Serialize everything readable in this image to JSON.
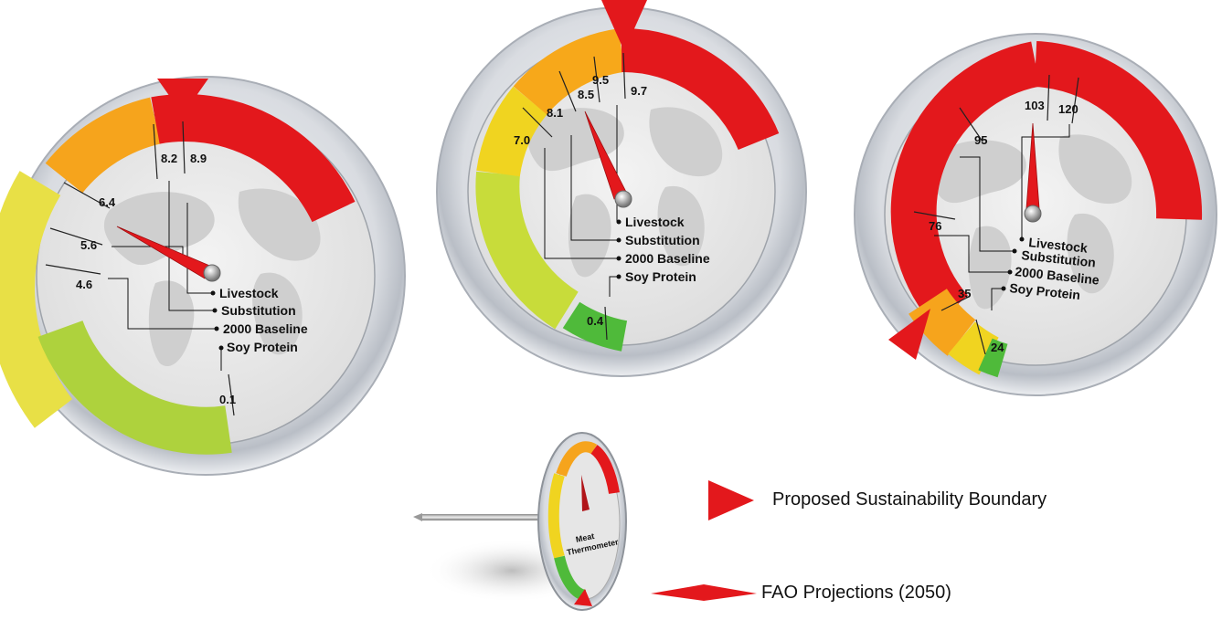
{
  "legend": {
    "boundary_label": "Proposed Sustainability Boundary",
    "fao_label": "FAO Projections (2050)"
  },
  "thermometer": {
    "line1": "Meat",
    "line2": "Thermometer"
  },
  "colors": {
    "red": "#e3181c",
    "orange": "#f59a16",
    "yellow": "#f2e21a",
    "green": "#4fba3a",
    "dial_face": "#e8e8e8",
    "map": "#cfcfcf",
    "bezel": "#c9cdd4"
  },
  "gauges": [
    {
      "scale_labels": [
        "0.1",
        "4.6",
        "5.6",
        "6.4",
        "8.2",
        "8.9"
      ],
      "categories": [
        "Livestock",
        "Substitution",
        "2000 Baseline",
        "Soy Protein"
      ],
      "needle_points_to": "5.6",
      "boundary_at": "8.2"
    },
    {
      "scale_labels": [
        "0.4",
        "7.0",
        "8.1",
        "8.5",
        "9.5",
        "9.7"
      ],
      "categories": [
        "Livestock",
        "Substitution",
        "2000 Baseline",
        "Soy Protein"
      ],
      "needle_points_to": "8.1",
      "boundary_at": "9.5"
    },
    {
      "scale_labels": [
        "24",
        "35",
        "76",
        "95",
        "103",
        "120"
      ],
      "categories": [
        "Livestock",
        "Substitution",
        "2000 Baseline",
        "Soy Protein"
      ],
      "needle_points_to": "103",
      "boundary_at": "35"
    }
  ]
}
